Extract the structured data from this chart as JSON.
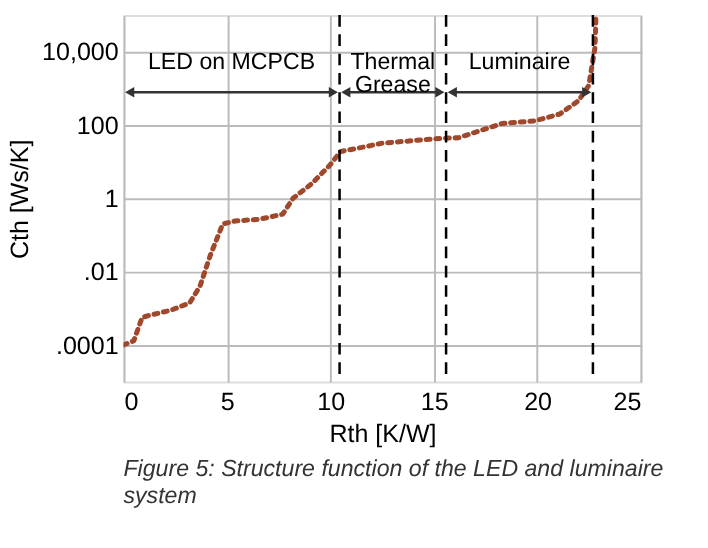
{
  "chart_data": {
    "type": "line",
    "xlabel": "Rth [K/W]",
    "ylabel": "Cth [Ws/K]",
    "x": [
      0,
      0.5,
      0.9,
      1.2,
      2.3,
      3.2,
      3.7,
      4.2,
      4.8,
      5.4,
      6.6,
      7.7,
      8.2,
      9.1,
      10,
      10.5,
      11.6,
      12.5,
      15.3,
      16.2,
      18.3,
      19.9,
      21.1,
      22,
      22.5,
      22.8,
      22.85
    ],
    "series": [
      {
        "color": "#a0482c",
        "values": [
          0.0001,
          0.00013,
          0.00056,
          0.00063,
          0.00089,
          0.0014,
          0.004,
          0.028,
          0.2,
          0.24,
          0.27,
          0.37,
          1,
          2.5,
          8.3,
          19,
          25,
          32,
          43,
          45,
          110,
          130,
          200,
          460,
          1200,
          13000,
          100000
        ]
      }
    ],
    "line_style": "dotted",
    "log": "y",
    "grid": true,
    "xlim": [
      0,
      25
    ],
    "xticks": [
      0,
      5,
      10,
      15,
      20,
      25
    ],
    "ylim": [
      1e-05,
      100000
    ],
    "yticks": [
      {
        "value": 10000,
        "label": "10,000"
      },
      100,
      1,
      {
        "value": 0.01,
        "label": ".01"
      },
      {
        "value": 0.0001,
        "label": ".0001"
      }
    ],
    "ref_lines": [
      {
        "axis": "x",
        "value": 10.45,
        "line_style": "dashed",
        "color": "#000000"
      },
      {
        "axis": "x",
        "value": 15.6,
        "line_style": "dashed",
        "color": "#000000"
      },
      {
        "axis": "x",
        "value": 22.7,
        "line_style": "dashed",
        "color": "#000000"
      }
    ],
    "annotations": [
      "LED on MCPCB",
      "Thermal Grease",
      "Luminaire",
      "Figure 5: Structure function of the LED and luminaire system"
    ]
  }
}
